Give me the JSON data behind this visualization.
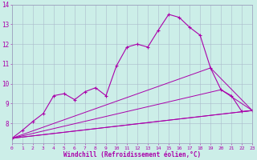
{
  "title": "",
  "xlabel": "Windchill (Refroidissement éolien,°C)",
  "background_color": "#cceee8",
  "line_color": "#aa00aa",
  "grid_color": "#aabbcc",
  "xmin": 0,
  "xmax": 23,
  "ymin": 7,
  "ymax": 14,
  "series_main": {
    "x": [
      0,
      1,
      2,
      3,
      4,
      5,
      6,
      7,
      8,
      9,
      10,
      11,
      12,
      13,
      14,
      15,
      16,
      17,
      18,
      19,
      20,
      21,
      22,
      23
    ],
    "y": [
      7.25,
      7.65,
      8.1,
      8.5,
      9.4,
      9.5,
      9.2,
      9.6,
      9.8,
      9.4,
      10.9,
      11.85,
      12.0,
      11.85,
      12.7,
      13.5,
      13.35,
      12.85,
      12.45,
      10.8,
      9.7,
      9.4,
      8.6,
      8.65
    ]
  },
  "series_lines": [
    {
      "x": [
        0,
        23
      ],
      "y": [
        7.25,
        8.65
      ]
    },
    {
      "x": [
        0,
        23
      ],
      "y": [
        7.25,
        8.65
      ]
    },
    {
      "x": [
        0,
        20,
        23
      ],
      "y": [
        7.25,
        9.7,
        8.65
      ]
    },
    {
      "x": [
        0,
        19,
        23
      ],
      "y": [
        7.25,
        10.8,
        8.65
      ]
    }
  ]
}
